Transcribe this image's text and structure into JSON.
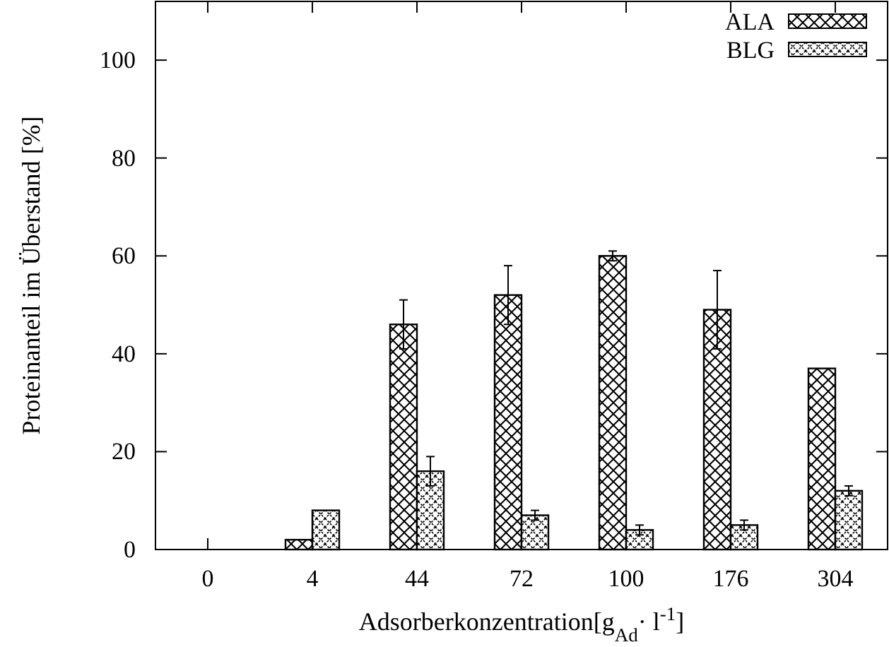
{
  "chart_data": {
    "type": "bar",
    "xlabel": "Adsorberkonzentration[g$_{Ad}$· l$^{-1}$]",
    "ylabel": "Proteinanteil im Überstand [%]",
    "categories": [
      "0",
      "4",
      "44",
      "72",
      "100",
      "176",
      "304"
    ],
    "series": [
      {
        "name": "ALA",
        "color": "#000000",
        "values": [
          0,
          2,
          46,
          52,
          60,
          49,
          37
        ],
        "errors": [
          null,
          null,
          5,
          6,
          1,
          8,
          null
        ]
      },
      {
        "name": "BLG",
        "color": "#000000",
        "values": [
          0,
          8,
          16,
          7,
          4,
          5,
          12
        ],
        "errors": [
          null,
          null,
          3,
          1,
          1,
          1,
          1
        ]
      }
    ],
    "ylim": [
      0,
      112
    ],
    "yticks": [
      0,
      20,
      40,
      60,
      80,
      100
    ],
    "legend": "top right"
  }
}
